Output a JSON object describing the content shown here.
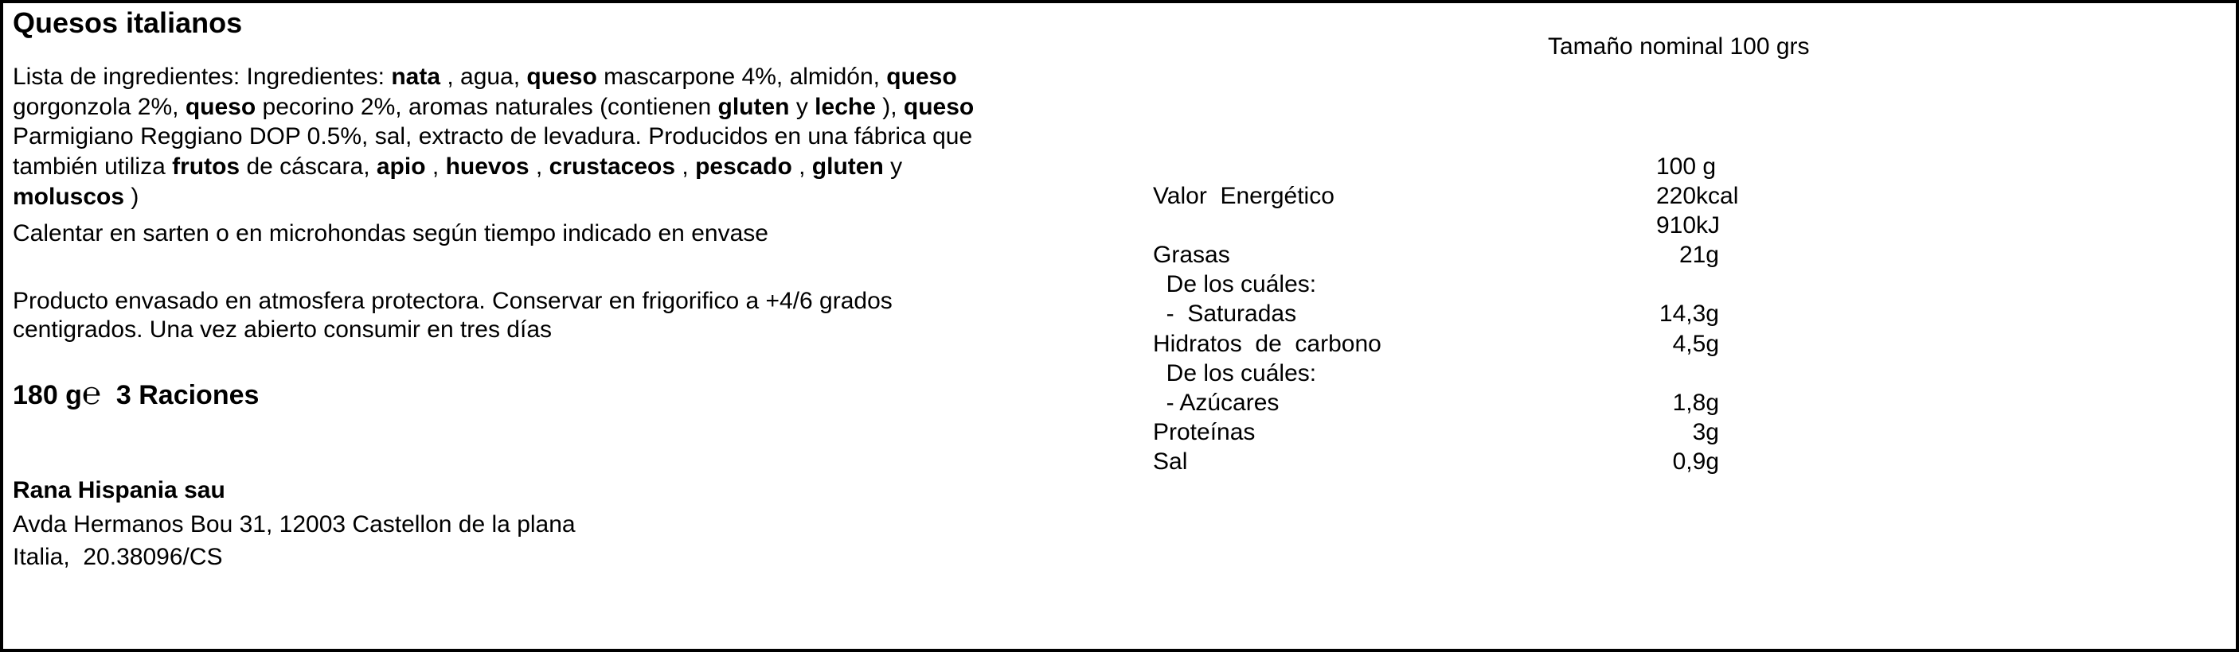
{
  "title": "Quesos italianos",
  "ingredients_lines": [
    [
      {
        "t": "Lista de ingredientes: Ingredientes: "
      },
      {
        "t": "nata",
        "b": true
      },
      {
        "t": " , agua, "
      },
      {
        "t": "queso",
        "b": true
      },
      {
        "t": " mascarpone 4%, almidón, "
      },
      {
        "t": "queso",
        "b": true
      }
    ],
    [
      {
        "t": "gorgonzola 2%, "
      },
      {
        "t": "queso",
        "b": true
      },
      {
        "t": " pecorino 2%, aromas naturales (contienen "
      },
      {
        "t": "gluten",
        "b": true
      },
      {
        "t": " y "
      },
      {
        "t": "leche",
        "b": true
      },
      {
        "t": " ), "
      },
      {
        "t": "queso",
        "b": true
      }
    ],
    [
      {
        "t": "Parmigiano Reggiano DOP 0.5%, sal, extracto de levadura. Producidos en una fábrica que"
      }
    ],
    [
      {
        "t": "también utiliza "
      },
      {
        "t": "frutos",
        "b": true
      },
      {
        "t": " de cáscara, "
      },
      {
        "t": "apio",
        "b": true
      },
      {
        "t": " , "
      },
      {
        "t": "huevos",
        "b": true
      },
      {
        "t": " , "
      },
      {
        "t": "crustaceos",
        "b": true
      },
      {
        "t": " , "
      },
      {
        "t": "pescado",
        "b": true
      },
      {
        "t": " , "
      },
      {
        "t": "gluten",
        "b": true
      },
      {
        "t": " y"
      }
    ],
    [
      {
        "t": "moluscos",
        "b": true
      },
      {
        "t": " )"
      }
    ]
  ],
  "preparation": "Calentar en sarten o en microhondas según tiempo indicado en envase",
  "storage_lines": [
    "Producto envasado en atmosfera protectora. Conservar en frigorifico a +4/6 grados",
    "centigrados. Una vez abierto consumir en tres días"
  ],
  "serving": {
    "weight": "180 g",
    "estimate_mark": "℮",
    "portions": "3 Raciones"
  },
  "company": {
    "name": "Rana Hispania sau",
    "address": "Avda Hermanos Bou 31, 12003 Castellon de la plana",
    "origin": "Italia,  20.38096/CS"
  },
  "nominal_size": "Tamaño nominal 100 grs",
  "nutrition": {
    "header": "100 g",
    "rows": [
      {
        "label": "Valor  Energético",
        "value": "220kcal",
        "align": "left"
      },
      {
        "label": "",
        "value": "910kJ",
        "align": "left"
      },
      {
        "label": "Grasas",
        "value": "21g"
      },
      {
        "label": "  De los cuáles:",
        "value": ""
      },
      {
        "label": "  -  Saturadas",
        "value": "14,3g"
      },
      {
        "label": "Hidratos  de  carbono",
        "value": "4,5g"
      },
      {
        "label": "  De los cuáles:",
        "value": ""
      },
      {
        "label": "  - Azúcares",
        "value": "1,8g"
      },
      {
        "label": "Proteínas",
        "value": "3g"
      },
      {
        "label": "Sal",
        "value": "0,9g"
      }
    ]
  }
}
